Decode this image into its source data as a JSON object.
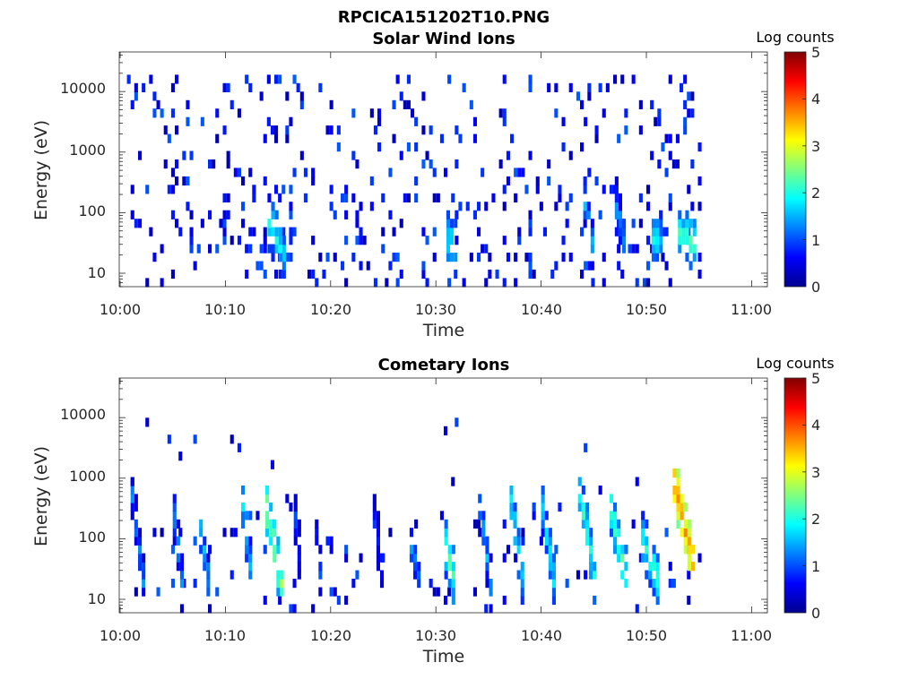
{
  "figure": {
    "title": "RPCICA151202T10.PNG"
  },
  "colorbar": {
    "label": "Log counts",
    "ticks": [
      "5",
      "4",
      "3",
      "2",
      "1",
      "0"
    ]
  },
  "panels": [
    {
      "title": "Solar Wind Ions",
      "xlabel": "Time",
      "ylabel": "Energy (eV)",
      "xticks": [
        "10:00",
        "10:10",
        "10:20",
        "10:30",
        "10:40",
        "10:50",
        "11:00"
      ],
      "yticks": [
        "10000",
        "1000",
        "100",
        "10"
      ]
    },
    {
      "title": "Cometary Ions",
      "xlabel": "Time",
      "ylabel": "Energy (eV)",
      "xticks": [
        "10:00",
        "10:10",
        "10:20",
        "10:30",
        "10:40",
        "10:50",
        "11:00"
      ],
      "yticks": [
        "10000",
        "1000",
        "100",
        "10"
      ]
    }
  ],
  "chart_data": [
    {
      "type": "heatmap",
      "title": "Solar Wind Ions",
      "xlabel": "Time",
      "ylabel": "Energy (eV)",
      "x_range": [
        "10:00",
        "11:02"
      ],
      "y_scale": "log",
      "y_range": [
        6,
        45000
      ],
      "color_scale": "jet",
      "color_range": [
        0,
        5
      ],
      "colorbar_label": "Log counts",
      "data_end": "10:55",
      "features": [
        {
          "start": "10:14",
          "end": "10:15.5",
          "energy_start": 70,
          "energy_end": 18,
          "log_counts": 1.9
        },
        {
          "start": "10:31",
          "end": "10:31.8",
          "energy_start": 40,
          "energy_end": 22,
          "log_counts": 1.9
        },
        {
          "start": "10:44",
          "end": "10:44.8",
          "energy_start": 150,
          "energy_end": 30,
          "log_counts": 1.5
        },
        {
          "start": "10:47",
          "end": "10:47.8",
          "energy_start": 120,
          "energy_end": 30,
          "log_counts": 1.4
        },
        {
          "start": "10:50.5",
          "end": "10:51.5",
          "energy_start": 40,
          "energy_end": 30,
          "log_counts": 1.8
        },
        {
          "start": "10:53",
          "end": "10:54.5",
          "energy_start": 45,
          "energy_end": 30,
          "log_counts": 2.1
        }
      ],
      "background": {
        "energy_range": [
          6,
          20000
        ],
        "log_counts": [
          0.2,
          1.2
        ],
        "density": "sparse"
      }
    },
    {
      "type": "heatmap",
      "title": "Cometary Ions",
      "xlabel": "Time",
      "ylabel": "Energy (eV)",
      "x_range": [
        "10:00",
        "11:02"
      ],
      "y_scale": "log",
      "y_range": [
        6,
        45000
      ],
      "color_scale": "jet",
      "color_range": [
        0,
        5
      ],
      "colorbar_label": "Log counts",
      "data_end": "10:55",
      "features": [
        {
          "start": "10:01",
          "end": "10:02.3",
          "energy_start": 500,
          "energy_end": 10,
          "log_counts": 1.3
        },
        {
          "start": "10:05",
          "end": "10:05.9",
          "energy_start": 200,
          "energy_end": 10,
          "log_counts": 1.4
        },
        {
          "start": "10:07.5",
          "end": "10:08.4",
          "energy_start": 150,
          "energy_end": 12,
          "log_counts": 1.6
        },
        {
          "start": "10:11.5",
          "end": "10:12.5",
          "energy_start": 400,
          "energy_end": 12,
          "log_counts": 1.8
        },
        {
          "start": "10:13.8",
          "end": "10:15.2",
          "energy_start": 300,
          "energy_end": 18,
          "log_counts": 2.6
        },
        {
          "start": "10:16.5",
          "end": "10:17.2",
          "energy_start": 200,
          "energy_end": 20,
          "log_counts": 1.0
        },
        {
          "start": "10:18.5",
          "end": "10:19.2",
          "energy_start": 100,
          "energy_end": 10,
          "log_counts": 1.0
        },
        {
          "start": "10:24",
          "end": "10:25",
          "energy_start": 200,
          "energy_end": 20,
          "log_counts": 1.0
        },
        {
          "start": "10:27.5",
          "end": "10:28.5",
          "energy_start": 80,
          "energy_end": 15,
          "log_counts": 1.4
        },
        {
          "start": "10:30.8",
          "end": "10:31.8",
          "energy_start": 70,
          "energy_end": 15,
          "log_counts": 2.2
        },
        {
          "start": "10:34",
          "end": "10:35.2",
          "energy_start": 300,
          "energy_end": 12,
          "log_counts": 1.5
        },
        {
          "start": "10:37",
          "end": "10:38.3",
          "energy_start": 400,
          "energy_end": 12,
          "log_counts": 1.9
        },
        {
          "start": "10:40",
          "end": "10:41.2",
          "energy_start": 300,
          "energy_end": 15,
          "log_counts": 1.8
        },
        {
          "start": "10:43.5",
          "end": "10:45",
          "energy_start": 600,
          "energy_end": 20,
          "log_counts": 2.0
        },
        {
          "start": "10:46.5",
          "end": "10:48",
          "energy_start": 300,
          "energy_end": 20,
          "log_counts": 2.2
        },
        {
          "start": "10:49.5",
          "end": "10:51",
          "energy_start": 100,
          "energy_end": 20,
          "log_counts": 2.0
        },
        {
          "start": "10:52.5",
          "end": "10:54.5",
          "energy_start": 800,
          "energy_end": 25,
          "log_counts": 3.6
        }
      ],
      "background": {
        "energy_range": [
          6,
          10000
        ],
        "log_counts": [
          0.2,
          1.0
        ],
        "density": "sparse"
      }
    }
  ]
}
